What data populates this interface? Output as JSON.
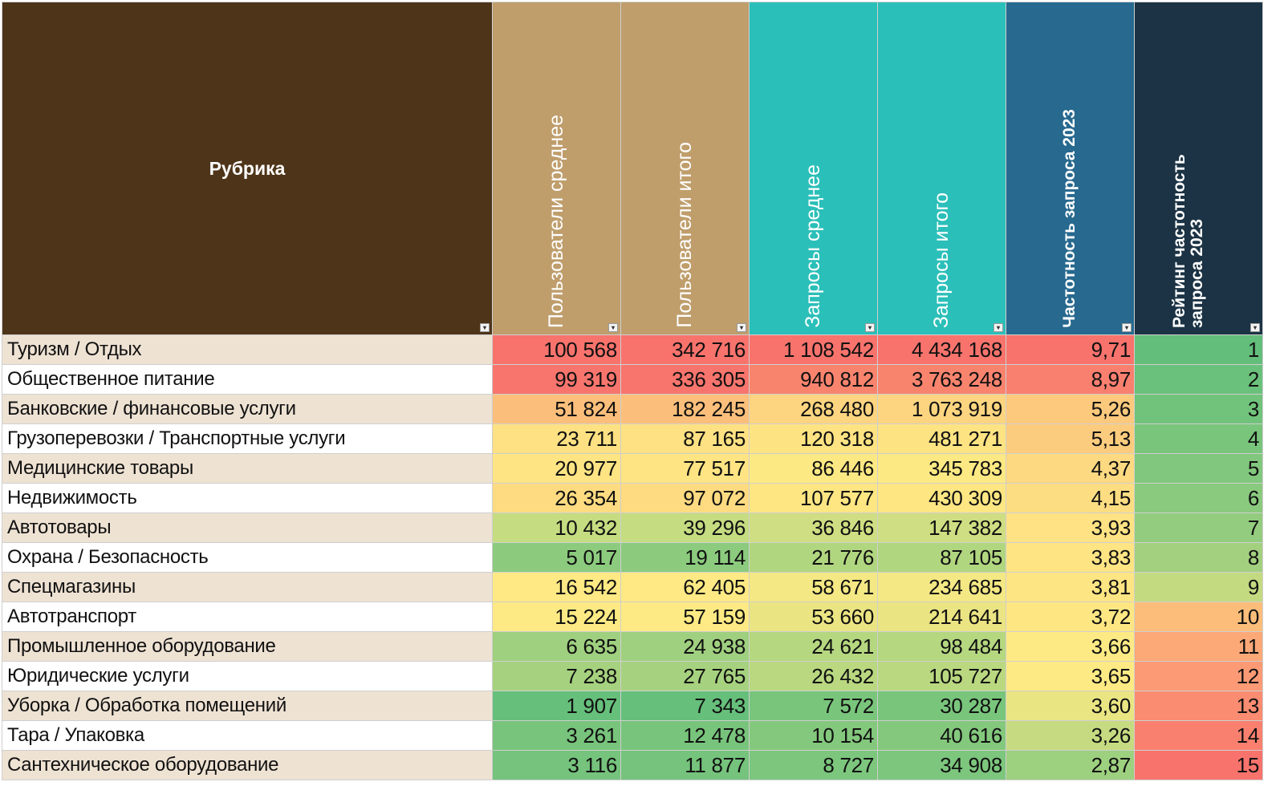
{
  "table": {
    "headers": [
      "Рубрика",
      "Пользователи среднее",
      "Пользователи итого",
      "Запросы среднее",
      "Запросы итого",
      "Частотность запроса 2023",
      "Рейтинг частотность запроса 2023"
    ],
    "header_colors": [
      "#4e3418",
      "#bf9e6c",
      "#bf9e6c",
      "#2bbfb9",
      "#2bbfb9",
      "#27698f",
      "#1b3344"
    ],
    "rows": [
      {
        "rubric": "Туризм / Отдых",
        "users_avg": "100 568",
        "users_total": "342 716",
        "req_avg": "1 108 542",
        "req_total": "4 434 168",
        "freq": "9,71",
        "rank": "1",
        "colors": [
          "#f8736c",
          "#f8736c",
          "#f8736c",
          "#f8736c",
          "#f8736c",
          "#63be7b"
        ]
      },
      {
        "rubric": "Общественное питание",
        "users_avg": "99 319",
        "users_total": "336 305",
        "req_avg": "940 812",
        "req_total": "3 763 248",
        "freq": "8,97",
        "rank": "2",
        "colors": [
          "#f8756d",
          "#f8756d",
          "#f9846e",
          "#f9846e",
          "#f97f6f",
          "#6ac17b"
        ]
      },
      {
        "rubric": "Банковские / финансовые услуги",
        "users_avg": "51 824",
        "users_total": "182 245",
        "req_avg": "268 480",
        "req_total": "1 073 919",
        "freq": "5,26",
        "rank": "3",
        "colors": [
          "#fcbf7b",
          "#fcbf7b",
          "#fdd580",
          "#fdd580",
          "#fcc97d",
          "#71c37c"
        ]
      },
      {
        "rubric": "Грузоперевозки / Транспортные услуги",
        "users_avg": "23 711",
        "users_total": "87 165",
        "req_avg": "120 318",
        "req_total": "481 271",
        "freq": "5,13",
        "rank": "4",
        "colors": [
          "#fee182",
          "#fee182",
          "#fee383",
          "#fee383",
          "#fccc7e",
          "#79c57c"
        ]
      },
      {
        "rubric": "Медицинские товары",
        "users_avg": "20 977",
        "users_total": "77 517",
        "req_avg": "86 446",
        "req_total": "345 783",
        "freq": "4,37",
        "rank": "5",
        "colors": [
          "#fee483",
          "#fee483",
          "#fde983",
          "#fde983",
          "#fdd981",
          "#81c77d"
        ]
      },
      {
        "rubric": "Недвижимость",
        "users_avg": "26 354",
        "users_total": "97 072",
        "req_avg": "107 577",
        "req_total": "430 309",
        "freq": "4,15",
        "rank": "6",
        "colors": [
          "#fedb81",
          "#fedb81",
          "#fee683",
          "#fee683",
          "#fddd82",
          "#8aca7e"
        ]
      },
      {
        "rubric": "Автотовары",
        "users_avg": "10 432",
        "users_total": "39 296",
        "req_avg": "36 846",
        "req_total": "147 382",
        "freq": "3,93",
        "rank": "7",
        "colors": [
          "#c5dc81",
          "#c5dc81",
          "#cfde82",
          "#cfde82",
          "#fee283",
          "#93cc7e"
        ]
      },
      {
        "rubric": "Охрана / Безопасность",
        "users_avg": "5 017",
        "users_total": "19 114",
        "req_avg": "21 776",
        "req_total": "87 105",
        "freq": "3,83",
        "rank": "8",
        "colors": [
          "#8ccb7e",
          "#8ccb7e",
          "#b1d680",
          "#b1d680",
          "#fee483",
          "#a2d07f"
        ]
      },
      {
        "rubric": "Спецмагазины",
        "users_avg": "16 542",
        "users_total": "62 405",
        "req_avg": "58 671",
        "req_total": "234 685",
        "freq": "3,81",
        "rank": "9",
        "colors": [
          "#fee984",
          "#fee984",
          "#f4e884",
          "#f4e884",
          "#fee583",
          "#c4da81"
        ]
      },
      {
        "rubric": "Автотранспорт",
        "users_avg": "15 224",
        "users_total": "57 159",
        "req_avg": "53 660",
        "req_total": "214 641",
        "freq": "3,72",
        "rank": "10",
        "colors": [
          "#feea84",
          "#feea84",
          "#ebe483",
          "#ebe483",
          "#fee783",
          "#fcbd7b"
        ]
      },
      {
        "rubric": "Промышленное оборудование",
        "users_avg": "6 635",
        "users_total": "24 938",
        "req_avg": "24 621",
        "req_total": "98 484",
        "freq": "3,66",
        "rank": "11",
        "colors": [
          "#9fd07f",
          "#9fd07f",
          "#b5d780",
          "#b5d780",
          "#feea84",
          "#fca877"
        ]
      },
      {
        "rubric": "Юридические услуги",
        "users_avg": "7 238",
        "users_total": "27 765",
        "req_avg": "26 432",
        "req_total": "105 727",
        "freq": "3,65",
        "rank": "12",
        "colors": [
          "#a6d27f",
          "#a6d27f",
          "#b9d880",
          "#b9d880",
          "#feea84",
          "#fb9a74"
        ]
      },
      {
        "rubric": "Уборка / Обработка помещений",
        "users_avg": "1 907",
        "users_total": "7 343",
        "req_avg": "7 572",
        "req_total": "30 287",
        "freq": "3,60",
        "rank": "13",
        "colors": [
          "#66bf7b",
          "#66bf7b",
          "#79c57c",
          "#79c57c",
          "#e9e583",
          "#fa8c71"
        ]
      },
      {
        "rubric": "Тара / Упаковка",
        "users_avg": "3 261",
        "users_total": "12 478",
        "req_avg": "10 154",
        "req_total": "40 616",
        "freq": "3,26",
        "rank": "14",
        "colors": [
          "#78c47c",
          "#78c47c",
          "#84c87d",
          "#84c87d",
          "#c6db81",
          "#f9806f"
        ]
      },
      {
        "rubric": "Сантехническое оборудование",
        "users_avg": "3 116",
        "users_total": "11 877",
        "req_avg": "8 727",
        "req_total": "34 908",
        "freq": "2,87",
        "rank": "15",
        "colors": [
          "#75c37c",
          "#75c37c",
          "#7cc67d",
          "#7cc67d",
          "#9dd07f",
          "#f8736c"
        ]
      }
    ]
  }
}
